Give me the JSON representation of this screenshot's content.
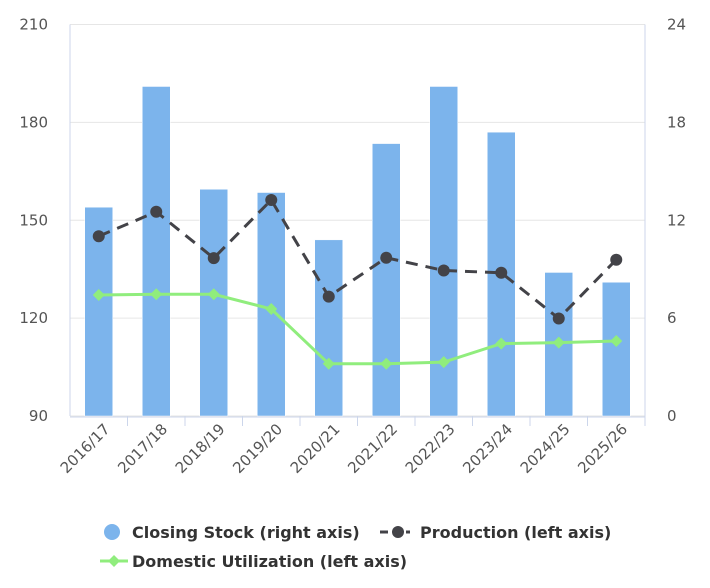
{
  "chart_data": {
    "type": "bar+line",
    "categories": [
      "2016/17",
      "2017/18",
      "2018/19",
      "2019/20",
      "2020/21",
      "2021/22",
      "2022/23",
      "2023/24",
      "2024/25",
      "2025/26"
    ],
    "left_axis": {
      "ylim": [
        90,
        210
      ],
      "ticks": [
        90,
        120,
        150,
        180,
        210
      ]
    },
    "right_axis": {
      "ylim": [
        0,
        24
      ],
      "ticks": [
        0,
        6,
        12,
        18,
        24
      ]
    },
    "grid": true,
    "legend_position": "bottom",
    "series": [
      {
        "name": "Closing Stock (right axis)",
        "type": "bar",
        "axis": "right",
        "color": "#7cb4ec",
        "values": [
          12.8,
          20.2,
          13.9,
          13.7,
          10.8,
          16.7,
          20.2,
          17.4,
          8.8,
          8.2
        ]
      },
      {
        "name": "Production (left axis)",
        "type": "line",
        "dash": "dashed",
        "marker": "circle",
        "axis": "left",
        "color": "#434348",
        "values": [
          145.1,
          152.6,
          138.4,
          156.2,
          126.6,
          138.5,
          134.6,
          133.9,
          119.9,
          137.9
        ]
      },
      {
        "name": "Domestic Utilization (left axis)",
        "type": "line",
        "marker": "diamond",
        "axis": "left",
        "color": "#90ed7d",
        "values": [
          127.1,
          127.3,
          127.3,
          122.8,
          106.0,
          106.0,
          106.5,
          112.2,
          112.5,
          113.0
        ]
      }
    ]
  }
}
